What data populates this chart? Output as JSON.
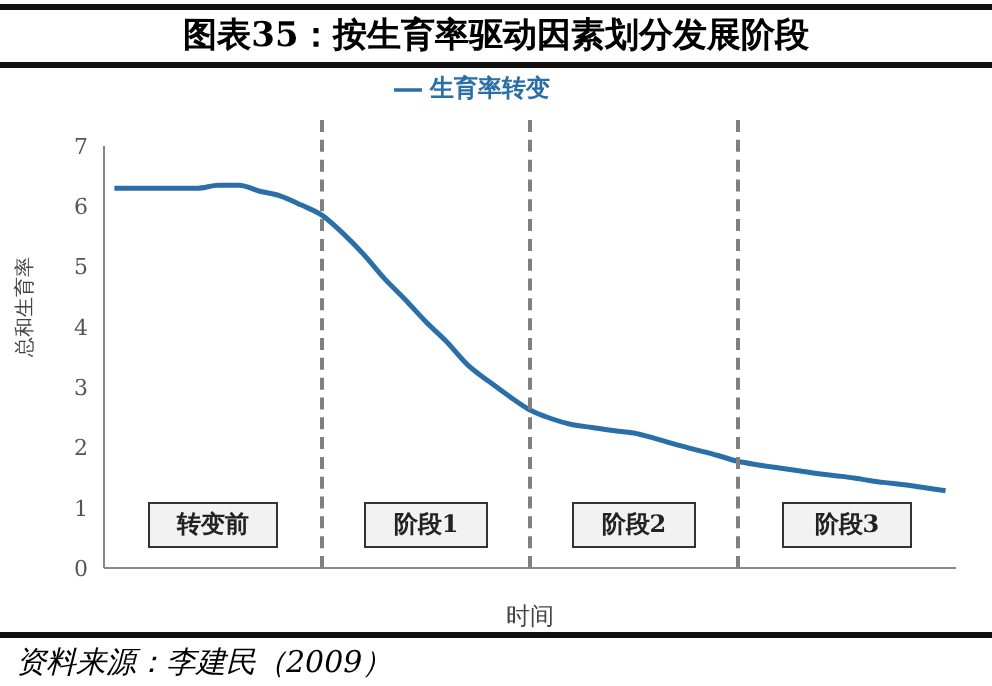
{
  "chart_data": {
    "type": "line",
    "title": "图表35：按生育率驱动因素划分发展阶段",
    "ylabel": "总和生育率",
    "xlabel": "时间",
    "categories": [
      null,
      null,
      null,
      null,
      null,
      null,
      null,
      null,
      null,
      null,
      null,
      null,
      null,
      null,
      null,
      null,
      null,
      null,
      null,
      null,
      null,
      null,
      null,
      null,
      null,
      null,
      null,
      null,
      null,
      null,
      null,
      null,
      null,
      null,
      null,
      null,
      null,
      null,
      null,
      null,
      null
    ],
    "series": [
      {
        "name": "生育率转变",
        "color": "#2a6fa8",
        "values": [
          6.3,
          6.3,
          6.3,
          6.3,
          6.3,
          6.35,
          6.35,
          6.25,
          6.17,
          6.02,
          5.85,
          5.55,
          5.2,
          4.8,
          4.45,
          4.08,
          3.75,
          3.37,
          3.1,
          2.85,
          2.62,
          2.48,
          2.38,
          2.33,
          2.28,
          2.24,
          2.15,
          2.05,
          1.96,
          1.87,
          1.77,
          1.71,
          1.66,
          1.61,
          1.56,
          1.52,
          1.47,
          1.42,
          1.38,
          1.33,
          1.28
        ]
      }
    ],
    "ylim": [
      0,
      7
    ],
    "yticks": [
      0,
      1,
      2,
      3,
      4,
      5,
      6,
      7
    ],
    "grid": "x",
    "legend": "top",
    "marker": "none",
    "line_style": "solid",
    "tick_labels": "y",
    "annotations": [
      "转变前",
      "阶段1",
      "阶段2",
      "阶段3",
      "资料来源：李建民（2009）"
    ]
  }
}
